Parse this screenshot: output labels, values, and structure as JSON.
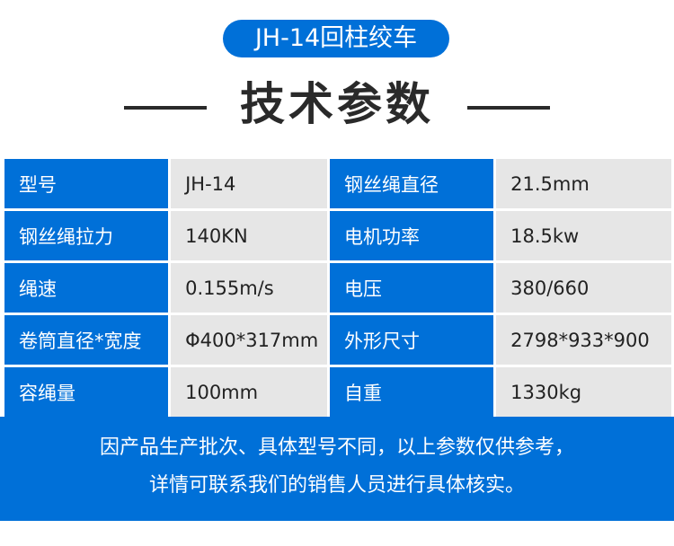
{
  "title": "JH-14回柱绞车",
  "heading": "技术参数",
  "rows": [
    {
      "k1": "型号",
      "v1": "JH-14",
      "k2": "钢丝绳直径",
      "v2": "21.5mm"
    },
    {
      "k1": "钢丝绳拉力",
      "v1": "140KN",
      "k2": "电机功率",
      "v2": "18.5kw"
    },
    {
      "k1": "绳速",
      "v1": "0.155m/s",
      "k2": "电压",
      "v2": "380/660"
    },
    {
      "k1": "卷筒直径*宽度",
      "v1": "Φ400*317mm",
      "k2": "外形尺寸",
      "v2": "2798*933*900"
    },
    {
      "k1": "容绳量",
      "v1": "100mm",
      "k2": "自重",
      "v2": "1330kg"
    }
  ],
  "footer": {
    "line1": "因产品生产批次、具体型号不同，以上参数仅供参考，",
    "line2": "详情可联系我们的销售人员进行具体核实。"
  },
  "colors": {
    "accent": "#0070d8",
    "cell": "#e6e6e6"
  }
}
